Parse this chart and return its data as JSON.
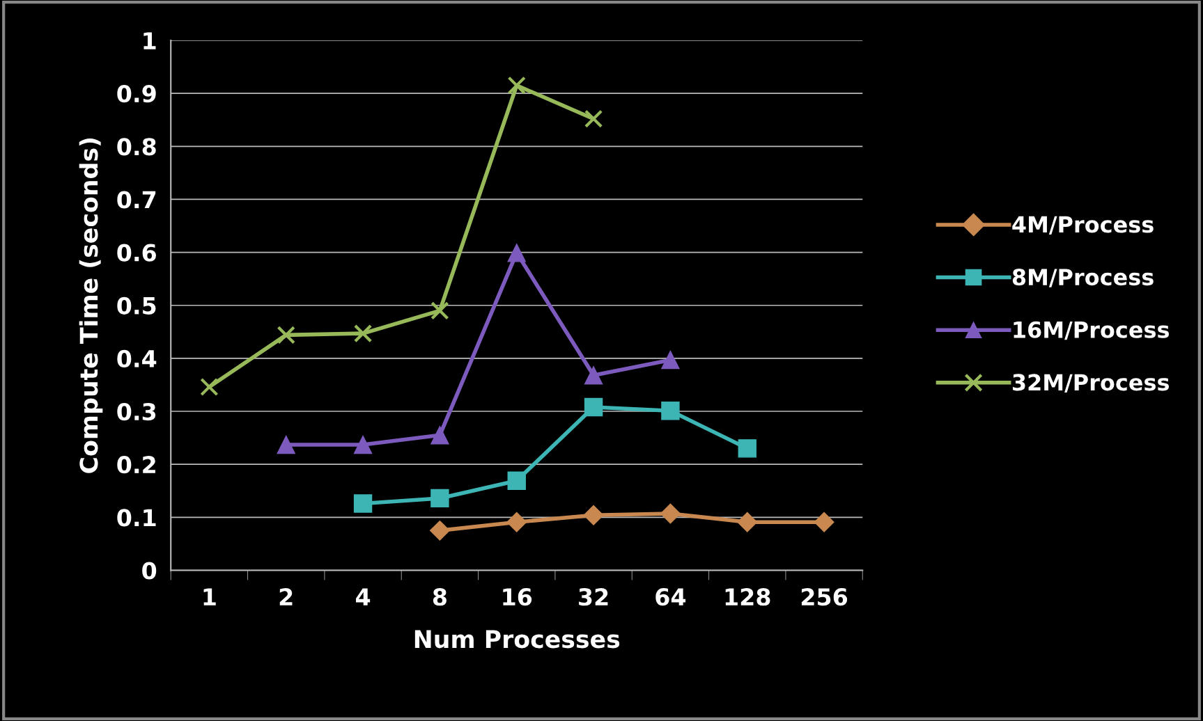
{
  "chart_data": {
    "type": "line",
    "xlabel": "Num Processes",
    "ylabel": "Compute Time (seconds)",
    "categories": [
      "1",
      "2",
      "4",
      "8",
      "16",
      "32",
      "64",
      "128",
      "256"
    ],
    "ylim": [
      0,
      1
    ],
    "yticks": [
      0,
      0.1,
      0.2,
      0.3,
      0.4,
      0.5,
      0.6,
      0.7,
      0.8,
      0.9,
      1
    ],
    "grid": "y",
    "legend": "right",
    "line_style": "solid",
    "series": [
      {
        "name": "4M/Process",
        "color": "#c8884f",
        "marker": "diamond",
        "values": [
          null,
          null,
          null,
          0.075,
          0.091,
          0.104,
          0.107,
          0.091,
          0.091
        ]
      },
      {
        "name": "8M/Process",
        "color": "#3db5b5",
        "marker": "square",
        "values": [
          null,
          null,
          0.126,
          0.136,
          0.169,
          0.308,
          0.301,
          0.23,
          null
        ]
      },
      {
        "name": "16M/Process",
        "color": "#7d5bbe",
        "marker": "triangle",
        "values": [
          null,
          0.237,
          0.237,
          0.255,
          0.599,
          0.368,
          0.397,
          null,
          null
        ]
      },
      {
        "name": "32M/Process",
        "color": "#98b95a",
        "marker": "cross",
        "values": [
          0.346,
          0.444,
          0.447,
          0.49,
          0.915,
          0.852,
          null,
          null,
          null
        ]
      }
    ]
  }
}
